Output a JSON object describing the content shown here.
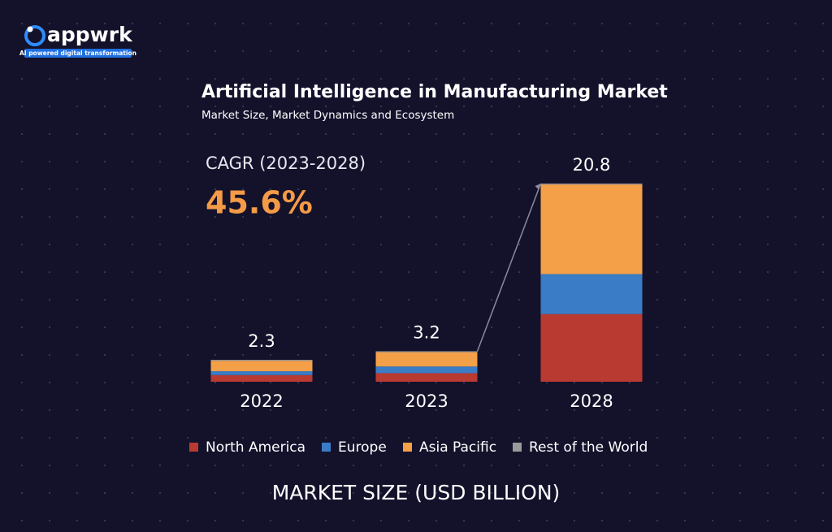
{
  "brand": {
    "name": "appwrk",
    "tagline": "AI powered digital transformation"
  },
  "chart_data": {
    "type": "stacked-bar",
    "title": "Artificial Intelligence in Manufacturing Market",
    "subtitle": "Market Size, Market Dynamics and Ecosystem",
    "annotation_label": "CAGR (2023-2028)",
    "annotation_value": "45.6%",
    "x_label": "MARKET SIZE (USD BILLION)",
    "categories": [
      "2022",
      "2023",
      "2028"
    ],
    "totals": [
      2.3,
      3.2,
      20.8
    ],
    "series": [
      {
        "name": "North America",
        "color": "#b93a31",
        "values": [
          0.7,
          0.9,
          7.1
        ]
      },
      {
        "name": "Europe",
        "color": "#3b7cc6",
        "values": [
          0.4,
          0.7,
          4.2
        ]
      },
      {
        "name": "Asia Pacific",
        "color": "#f4a049",
        "values": [
          1.1,
          1.5,
          9.4
        ]
      },
      {
        "name": "Rest of the World",
        "color": "#9a9a9a",
        "values": [
          0.1,
          0.1,
          0.1
        ]
      }
    ]
  }
}
